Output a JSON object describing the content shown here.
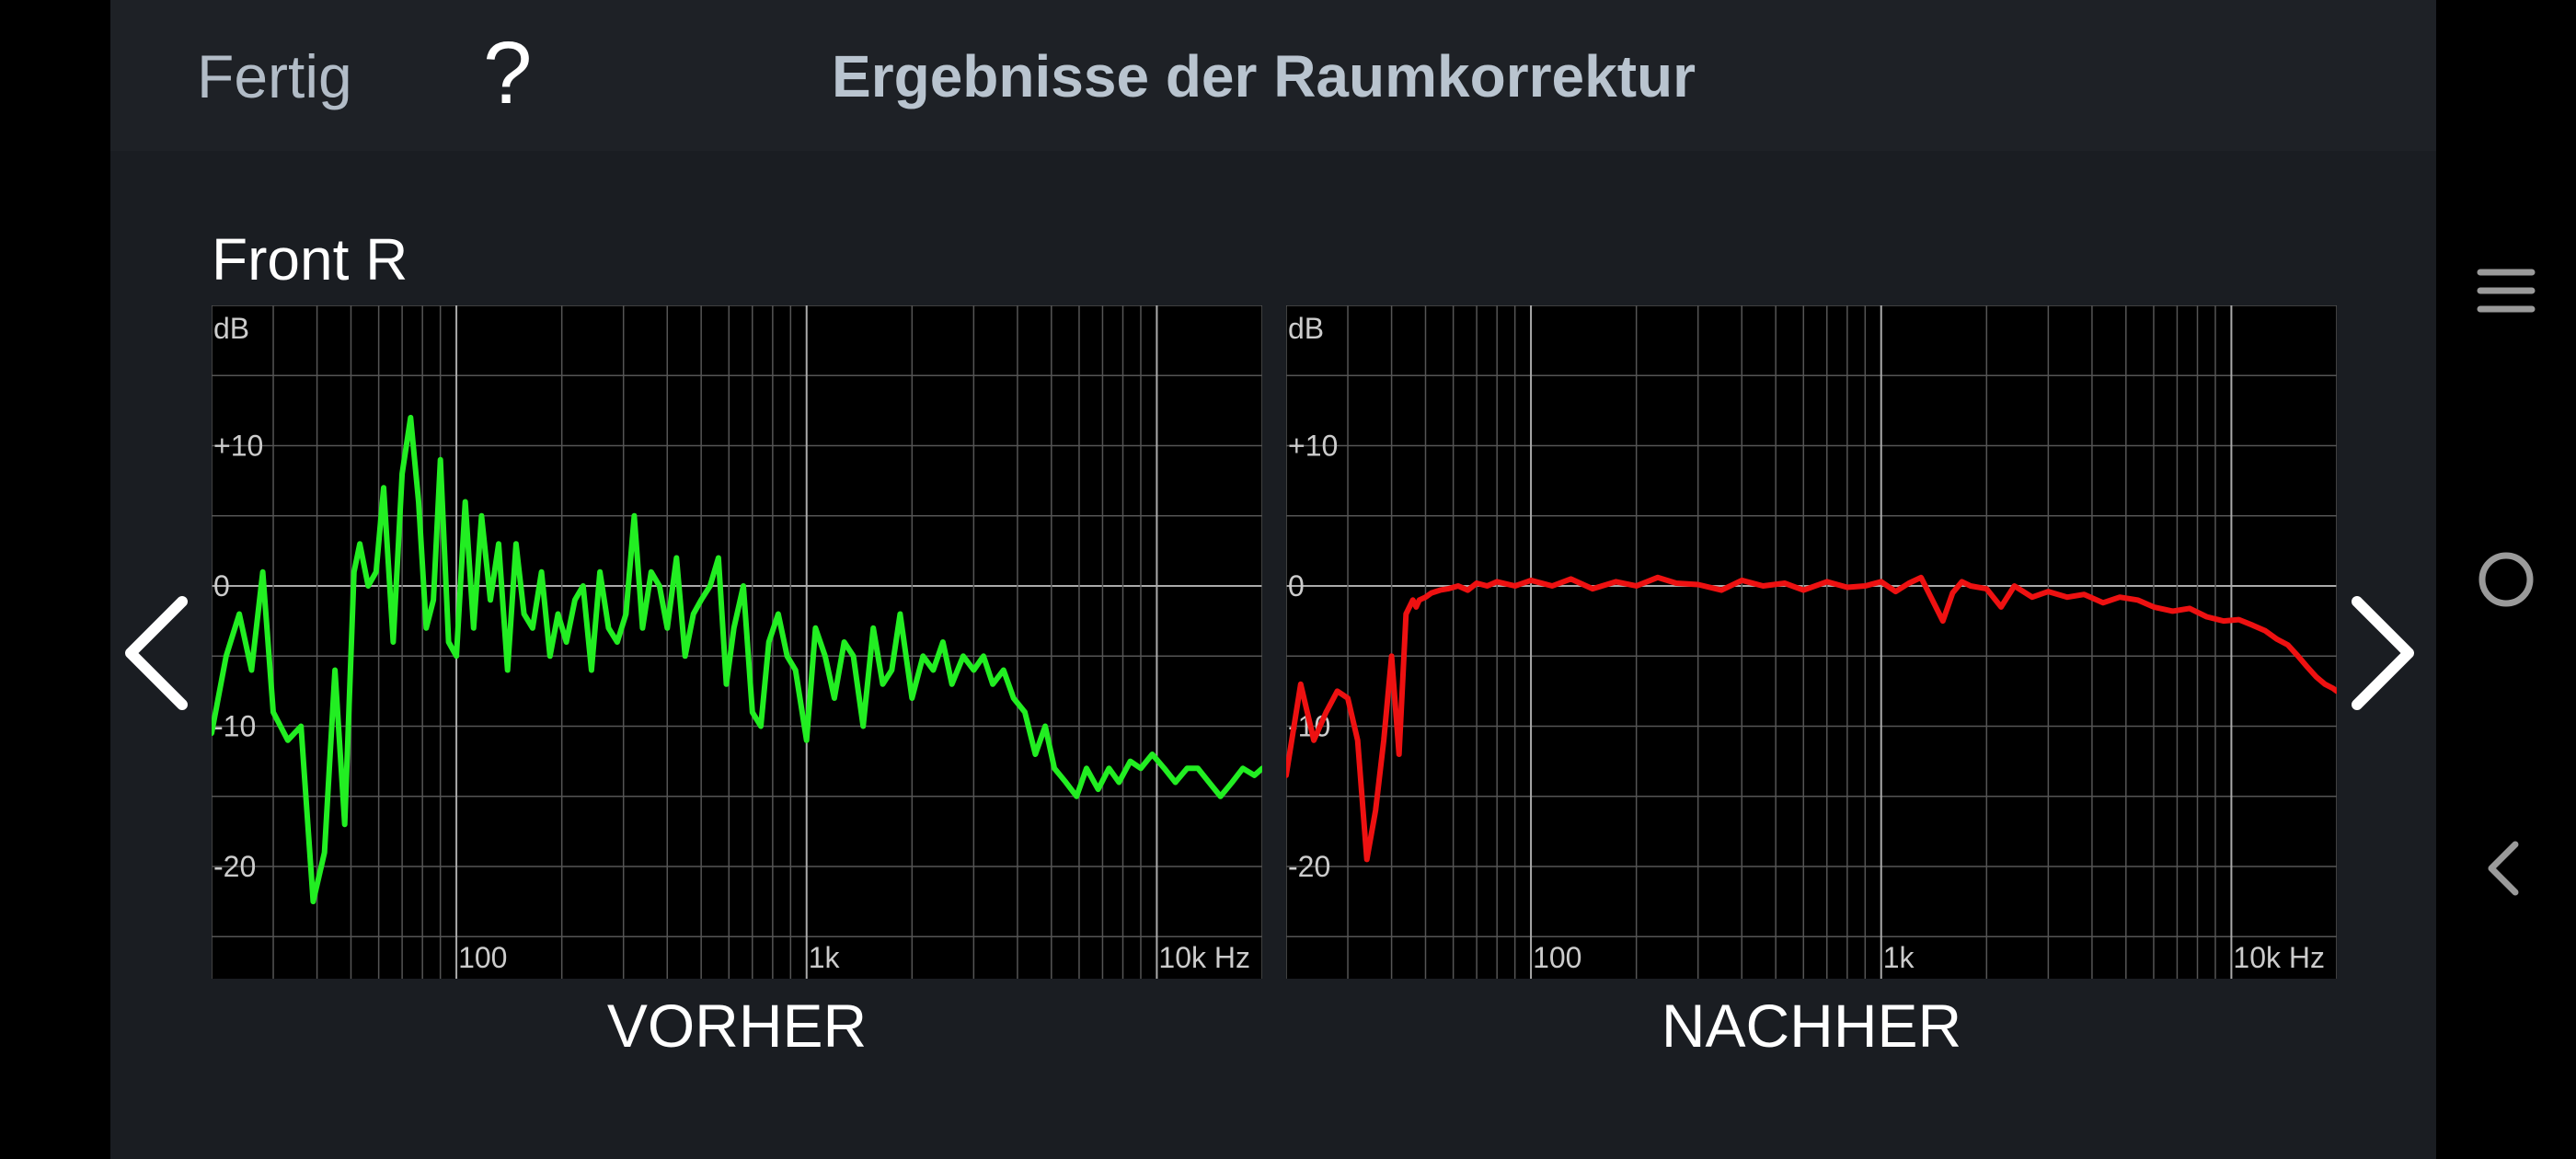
{
  "header": {
    "done_label": "Fertig",
    "help_label": "?",
    "title": "Ergebnisse der Raumkorrektur"
  },
  "channel": "Front R",
  "charts": {
    "before_label": "VORHER",
    "after_label": "NACHHER"
  },
  "navigation": {
    "prev_icon": "chevron-left-icon",
    "next_icon": "chevron-right-icon"
  },
  "system_nav": {
    "menu_icon": "menu-icon",
    "home_icon": "home-icon",
    "back_icon": "back-icon"
  },
  "colors": {
    "before_curve": "#22ee22",
    "after_curve": "#ee1111",
    "grid": "#555555",
    "grid_major": "#aaaaaa",
    "axis_text": "#cccccc"
  },
  "chart_data": [
    {
      "type": "line",
      "title": "VORHER",
      "ylabel": "dB",
      "xlabel": "Hz",
      "x_scale": "log",
      "xlim": [
        20,
        20000
      ],
      "ylim": [
        -28,
        20
      ],
      "x_ticks": [
        {
          "value": 100,
          "label": "100"
        },
        {
          "value": 1000,
          "label": "1k"
        },
        {
          "value": 10000,
          "label": "10k Hz"
        }
      ],
      "y_ticks": [
        {
          "value": 10,
          "label": "+10"
        },
        {
          "value": 0,
          "label": "0"
        },
        {
          "value": -10,
          "label": "-10"
        },
        {
          "value": -20,
          "label": "-20"
        }
      ],
      "grid": true,
      "series": [
        {
          "x": [
            20,
            22,
            24,
            26,
            28,
            30,
            33,
            36,
            39,
            42,
            45,
            48,
            51,
            53,
            56,
            59,
            62,
            66,
            70,
            74,
            78,
            82,
            86,
            90,
            95,
            100,
            106,
            112,
            118,
            125,
            132,
            140,
            148,
            156,
            165,
            175,
            185,
            195,
            206,
            218,
            230,
            243,
            257,
            272,
            288,
            305,
            322,
            340,
            360,
            380,
            400,
            425,
            450,
            475,
            500,
            530,
            560,
            590,
            620,
            660,
            700,
            740,
            780,
            830,
            880,
            930,
            1000,
            1060,
            1130,
            1200,
            1280,
            1360,
            1450,
            1550,
            1650,
            1750,
            1850,
            2000,
            2150,
            2300,
            2450,
            2600,
            2800,
            3000,
            3200,
            3400,
            3650,
            3900,
            4200,
            4500,
            4800,
            5100,
            5500,
            5900,
            6300,
            6800,
            7300,
            7800,
            8400,
            9000,
            9700,
            10500,
            11300,
            12200,
            13100,
            14100,
            15200,
            16400,
            17600,
            19000,
            20000
          ],
          "y": [
            -10.5,
            -5,
            -2,
            -6,
            1,
            -9,
            -11,
            -10,
            -22.5,
            -19,
            -6,
            -17,
            1,
            3,
            0,
            1,
            7,
            -4,
            8,
            12,
            6,
            -3,
            -1,
            9,
            -4,
            -5,
            6,
            -3,
            5,
            -1,
            3,
            -6,
            3,
            -2,
            -3,
            1,
            -5,
            -2,
            -4,
            -1,
            0,
            -6,
            1,
            -3,
            -4,
            -2,
            5,
            -3,
            1,
            0,
            -3,
            2,
            -5,
            -2,
            -1,
            0,
            2,
            -7,
            -3,
            0,
            -9,
            -10,
            -4,
            -2,
            -5,
            -6,
            -11,
            -3,
            -5,
            -8,
            -4,
            -5,
            -10,
            -3,
            -7,
            -6,
            -2,
            -8,
            -5,
            -6,
            -4,
            -7,
            -5,
            -6,
            -5,
            -7,
            -6,
            -8,
            -9,
            -12,
            -10,
            -13,
            -14,
            -15,
            -13,
            -14.5,
            -13,
            -14,
            -12.5,
            -13,
            -12,
            -13,
            -14,
            -13,
            -13,
            -14,
            -15,
            -14,
            -13,
            -13.5,
            -13
          ]
        }
      ]
    },
    {
      "type": "line",
      "title": "NACHHER",
      "ylabel": "dB",
      "xlabel": "Hz",
      "x_scale": "log",
      "xlim": [
        20,
        20000
      ],
      "ylim": [
        -28,
        20
      ],
      "x_ticks": [
        {
          "value": 100,
          "label": "100"
        },
        {
          "value": 1000,
          "label": "1k"
        },
        {
          "value": 10000,
          "label": "10k Hz"
        }
      ],
      "y_ticks": [
        {
          "value": 10,
          "label": "+10"
        },
        {
          "value": 0,
          "label": "0"
        },
        {
          "value": -10,
          "label": "-10"
        },
        {
          "value": -20,
          "label": "-20"
        }
      ],
      "grid": true,
      "series": [
        {
          "x": [
            20,
            22,
            24,
            26,
            28,
            30,
            32,
            34,
            36,
            38,
            40,
            42,
            44,
            46,
            47,
            48,
            50,
            52,
            55,
            58,
            62,
            66,
            70,
            75,
            80,
            90,
            100,
            115,
            130,
            150,
            175,
            200,
            230,
            260,
            300,
            350,
            400,
            460,
            530,
            600,
            700,
            800,
            900,
            1000,
            1100,
            1200,
            1300,
            1400,
            1500,
            1600,
            1700,
            1800,
            2000,
            2200,
            2400,
            2700,
            3000,
            3400,
            3800,
            4300,
            4800,
            5400,
            6000,
            6800,
            7600,
            8500,
            9500,
            10500,
            11500,
            12500,
            13500,
            14500,
            15500,
            16500,
            17500,
            18500,
            19500,
            20000
          ],
          "y": [
            -13.5,
            -7,
            -11,
            -9,
            -7.5,
            -8,
            -11,
            -19.5,
            -16,
            -11,
            -5,
            -12,
            -2,
            -1,
            -1.5,
            -1,
            -0.8,
            -0.5,
            -0.3,
            -0.2,
            0,
            -0.3,
            0.2,
            0,
            0.3,
            0,
            0.4,
            0,
            0.5,
            -0.2,
            0.3,
            0,
            0.6,
            0.2,
            0.1,
            -0.3,
            0.4,
            0,
            0.2,
            -0.3,
            0.3,
            -0.1,
            0,
            0.3,
            -0.4,
            0.2,
            0.6,
            -1,
            -2.5,
            -0.5,
            0.3,
            0,
            -0.2,
            -1.5,
            0,
            -0.8,
            -0.4,
            -0.8,
            -0.6,
            -1.2,
            -0.8,
            -1,
            -1.5,
            -1.8,
            -1.6,
            -2.2,
            -2.5,
            -2.4,
            -2.8,
            -3.2,
            -3.8,
            -4.2,
            -5,
            -5.8,
            -6.5,
            -7,
            -7.3,
            -7.5
          ]
        }
      ]
    }
  ]
}
